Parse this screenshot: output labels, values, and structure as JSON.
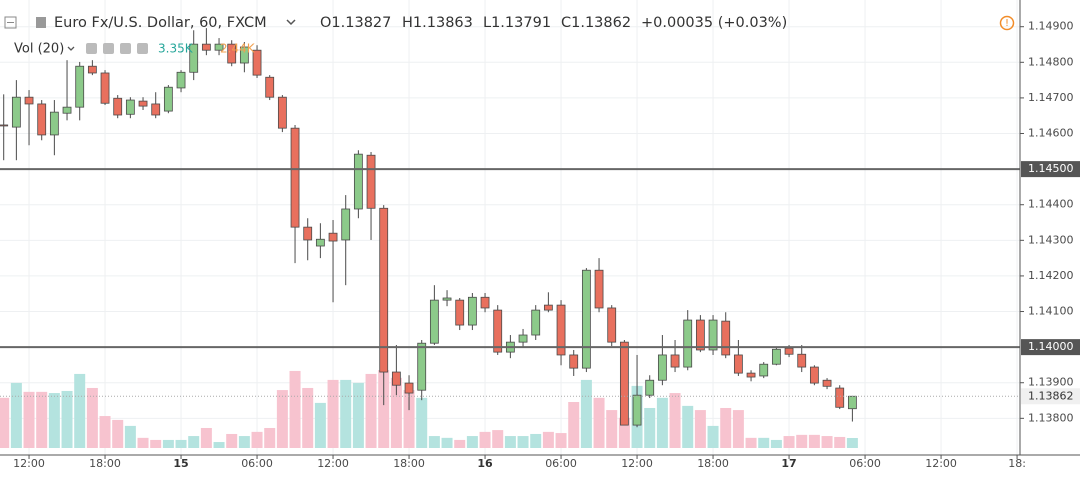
{
  "chart_data": {
    "type": "candlestick",
    "header": {
      "symbol": "Euro Fx/U.S. Dollar, 60, FXCM",
      "open": "O1.13827",
      "high": "H1.13863",
      "low": "L1.13791",
      "close": "C1.13862",
      "change": "+0.00035 (+0.03%)",
      "volume_title": "Vol (20)",
      "volume_value": "3.35K",
      "volume_ma": "2.44K"
    },
    "categories": [
      null,
      null,
      "12:00",
      null,
      null,
      null,
      null,
      null,
      "18:00",
      null,
      null,
      null,
      null,
      null,
      "15",
      null,
      null,
      null,
      null,
      null,
      "06:00",
      null,
      null,
      null,
      null,
      null,
      "12:00",
      null,
      null,
      null,
      null,
      null,
      "18:00",
      null,
      null,
      null,
      null,
      null,
      "16",
      null,
      null,
      null,
      null,
      null,
      "06:00",
      null,
      null,
      null,
      null,
      null,
      "12:00",
      null,
      null,
      null,
      null,
      null,
      "18:00",
      null,
      null,
      null,
      null,
      null,
      "17",
      null,
      null,
      null,
      null,
      null,
      "06:00",
      null,
      null,
      null,
      null,
      null,
      "12:00",
      null,
      null,
      null,
      null,
      null,
      "18:"
    ],
    "open": [
      1.14624,
      1.14618,
      1.14702,
      1.14683,
      1.14596,
      1.14657,
      1.14674,
      1.14789,
      1.1477,
      1.14699,
      1.14654,
      1.14691,
      1.14683,
      1.14663,
      1.14728,
      1.14772,
      1.14851,
      1.14834,
      1.14851,
      1.14798,
      1.14834,
      1.14758,
      1.14702,
      1.14615,
      1.14337,
      1.14284,
      1.1432,
      1.14301,
      1.14388,
      1.14539,
      1.1439,
      1.1393,
      1.13899,
      1.13879,
      1.14011,
      1.14132,
      1.14132,
      1.14062,
      1.1414,
      1.14104,
      1.13986,
      1.14014,
      1.14034,
      1.14118,
      1.14118,
      1.13978,
      1.13941,
      1.14216,
      1.1411,
      1.14014,
      1.13781,
      1.13865,
      1.13907,
      1.13978,
      1.13944,
      1.14076,
      1.13992,
      1.14073,
      1.13978,
      1.13927,
      1.13919,
      1.13952,
      1.13997,
      1.1398,
      1.13944,
      1.13907,
      1.13885,
      1.13827,
      null,
      null,
      null,
      null,
      null,
      null,
      null,
      null,
      null,
      null,
      null,
      null,
      null
    ],
    "high": [
      1.1471,
      1.1475,
      1.14722,
      1.14694,
      1.14694,
      1.14806,
      1.14801,
      1.14806,
      1.14778,
      1.14708,
      1.14702,
      1.14702,
      1.14716,
      1.14736,
      1.14778,
      1.1489,
      1.14896,
      1.14868,
      1.14862,
      1.14857,
      1.14848,
      1.14764,
      1.14708,
      1.14624,
      1.14362,
      1.14348,
      1.14357,
      1.14427,
      1.14553,
      1.14548,
      1.14399,
      1.14006,
      1.13921,
      1.1402,
      1.14174,
      1.1416,
      1.14138,
      1.14152,
      1.14152,
      1.14118,
      1.14034,
      1.14051,
      1.14118,
      1.14154,
      1.14132,
      1.13992,
      1.14222,
      1.1425,
      1.14118,
      1.1402,
      1.13978,
      1.13921,
      1.14034,
      1.1402,
      1.14104,
      1.1409,
      1.1409,
      1.14098,
      1.1402,
      1.13935,
      1.13958,
      1.14,
      1.14006,
      1.14006,
      1.13949,
      1.13913,
      1.13893,
      1.13863,
      null,
      null,
      null,
      null,
      null,
      null,
      null,
      null,
      null,
      null,
      null,
      null,
      null
    ],
    "low": [
      1.14525,
      1.14525,
      1.14567,
      1.14581,
      1.14539,
      1.14637,
      1.14637,
      1.14764,
      1.1468,
      1.14643,
      1.14643,
      1.14666,
      1.14643,
      1.14657,
      1.14716,
      1.1475,
      1.1482,
      1.1482,
      1.14789,
      1.14772,
      1.14756,
      1.14694,
      1.14604,
      1.14236,
      1.14244,
      1.1425,
      1.14126,
      1.14174,
      1.14362,
      1.14301,
      1.13837,
      1.13865,
      1.13823,
      1.13851,
      1.14006,
      1.14115,
      1.14048,
      1.14048,
      1.14098,
      1.13978,
      1.13969,
      1.14,
      1.1402,
      1.14098,
      1.13949,
      1.13919,
      1.1393,
      1.14098,
      1.14003,
      1.13781,
      1.13775,
      1.13857,
      1.13893,
      1.1393,
      1.13935,
      1.13986,
      1.13978,
      1.13969,
      1.13919,
      1.13904,
      1.13913,
      1.13949,
      1.13972,
      1.1393,
      1.13893,
      1.13882,
      1.13826,
      1.13791,
      null,
      null,
      null,
      null,
      null,
      null,
      null,
      null,
      null,
      null,
      null,
      null,
      null
    ],
    "close": [
      1.14622,
      1.14702,
      1.14683,
      1.14596,
      1.1466,
      1.14674,
      1.14789,
      1.1477,
      1.14685,
      1.14652,
      1.14694,
      1.14677,
      1.14652,
      1.1473,
      1.14772,
      1.14851,
      1.14834,
      1.14851,
      1.14798,
      1.14843,
      1.14764,
      1.14702,
      1.14615,
      1.14337,
      1.14301,
      1.14303,
      1.14298,
      1.14388,
      1.14542,
      1.1439,
      1.1393,
      1.13893,
      1.13871,
      1.14011,
      1.14132,
      1.14138,
      1.14062,
      1.1414,
      1.1411,
      1.13986,
      1.14014,
      1.14034,
      1.14104,
      1.14104,
      1.13978,
      1.13941,
      1.14216,
      1.1411,
      1.14014,
      1.13781,
      1.13865,
      1.13907,
      1.13978,
      1.13944,
      1.14076,
      1.13992,
      1.14076,
      1.13978,
      1.13927,
      1.13916,
      1.13952,
      1.13994,
      1.1398,
      1.13944,
      1.13899,
      1.1389,
      1.13831,
      1.13862,
      null,
      null,
      null,
      null,
      null,
      null,
      null,
      null,
      null,
      null,
      null,
      null,
      null
    ],
    "volume": [
      16.8,
      21.8,
      18.8,
      18.8,
      18.4,
      19.1,
      24.8,
      20.1,
      10.7,
      9.4,
      7.4,
      3.4,
      2.7,
      2.7,
      2.7,
      4.0,
      6.7,
      2.0,
      4.7,
      4.0,
      5.4,
      6.7,
      19.4,
      25.8,
      20.1,
      15.1,
      22.8,
      22.8,
      21.8,
      24.8,
      26.1,
      23.5,
      19.4,
      16.8,
      4.0,
      3.4,
      2.7,
      4.0,
      5.4,
      6.0,
      4.0,
      4.0,
      4.7,
      5.4,
      5.0,
      15.4,
      22.8,
      16.8,
      12.7,
      10.1,
      20.8,
      13.4,
      16.8,
      18.4,
      14.1,
      12.7,
      7.4,
      13.4,
      12.7,
      3.4,
      3.4,
      2.7,
      4.0,
      4.4,
      4.4,
      4.0,
      3.7,
      3.35,
      null,
      null,
      null,
      null,
      null,
      null,
      null,
      null,
      null,
      null,
      null,
      null,
      null
    ],
    "ylim": [
      1.13697,
      1.14975
    ],
    "yticks": [
      {
        "value": 1.149,
        "label": "1.14900"
      },
      {
        "value": 1.148,
        "label": "1.14800"
      },
      {
        "value": 1.147,
        "label": "1.14700"
      },
      {
        "value": 1.146,
        "label": "1.14600"
      },
      {
        "value": 1.144,
        "label": "1.14400"
      },
      {
        "value": 1.143,
        "label": "1.14300"
      },
      {
        "value": 1.142,
        "label": "1.14200"
      },
      {
        "value": 1.141,
        "label": "1.14100"
      },
      {
        "value": 1.139,
        "label": "1.13900"
      },
      {
        "value": 1.138,
        "label": "1.13800"
      }
    ],
    "y2lim": [
      0,
      150
    ],
    "horizontal_lines": [
      {
        "value": 1.145,
        "label": "1.14500"
      },
      {
        "value": 1.14,
        "label": "1.14000"
      }
    ],
    "last_price": {
      "value": 1.13862,
      "label": "1.13862"
    },
    "up_color": "#8cca8a",
    "down_color": "#e8705e",
    "up_volume_color": "#b4e3df",
    "down_volume_color": "#f7c3cf",
    "grid": true
  }
}
